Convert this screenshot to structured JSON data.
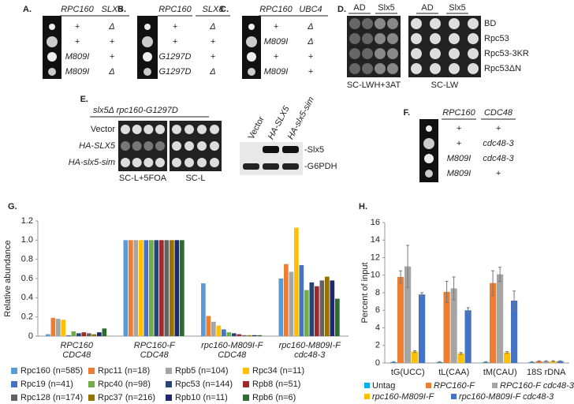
{
  "panels": {
    "A": {
      "label": "A.",
      "headers": [
        "RPC160",
        "SLX5"
      ],
      "rows": [
        [
          "+",
          "Δ"
        ],
        [
          "+",
          "+"
        ],
        [
          "M809I",
          "+"
        ],
        [
          "M809I",
          "Δ"
        ]
      ]
    },
    "B": {
      "label": "B.",
      "headers": [
        "RPC160",
        "SLX8"
      ],
      "rows": [
        [
          "+",
          "Δ"
        ],
        [
          "+",
          "+"
        ],
        [
          "G1297D",
          "+"
        ],
        [
          "G1297D",
          "Δ"
        ]
      ]
    },
    "C": {
      "label": "C.",
      "headers": [
        "RPC160",
        "UBC4"
      ],
      "rows": [
        [
          "+",
          "Δ"
        ],
        [
          "M809I",
          "Δ"
        ],
        [
          "+",
          "+"
        ],
        [
          "M809I",
          "+"
        ]
      ]
    },
    "D": {
      "label": "D.",
      "columns": [
        "AD",
        "Slx5",
        "AD",
        "Slx5"
      ],
      "rows": [
        "BD",
        "Rpc53",
        "Rpc53-3KR",
        "Rpc53ΔN"
      ],
      "plates": [
        "SC-LWH+3AT",
        "SC-LW"
      ]
    },
    "E": {
      "label": "E.",
      "header": "slx5Δ  rpc160-G1297D",
      "rows": [
        "Vector",
        "HA-SLX5",
        "HA-slx5-sim"
      ],
      "plates": [
        "SC-L+5FOA",
        "SC-L"
      ],
      "lanes": [
        "Vector",
        "HA-SLX5",
        "HA-slx5-sim"
      ],
      "bands": [
        "-Slx5",
        "-G6PDH"
      ]
    },
    "F": {
      "label": "F.",
      "headers": [
        "RPC160",
        "CDC48"
      ],
      "rows": [
        [
          "+",
          "+"
        ],
        [
          "+",
          "cdc48-3"
        ],
        [
          "M809I",
          "cdc48-3"
        ],
        [
          "M809I",
          "+"
        ]
      ]
    }
  },
  "chart_data": [
    {
      "type": "bar",
      "label": "G.",
      "y_label": "Relative abundance",
      "categories": [
        "RPC160\nCDC48",
        "RPC160-F\nCDC48",
        "rpc160-M809I-F\nCDC48",
        "rpc160-M809I-F\ncdc48-3"
      ],
      "ylim": [
        0,
        1.2
      ],
      "yticks": [
        0,
        0.2,
        0.4,
        0.6,
        0.8,
        {
          "value": 1,
          "label": "1.0"
        },
        1.2
      ],
      "series": [
        {
          "name": "Rpc160 (n=585)",
          "color": "#5b9bd5",
          "values": [
            0.02,
            1,
            0.55,
            0.6
          ]
        },
        {
          "name": "Rpc11 (n=18)",
          "color": "#ed7d31",
          "values": [
            0.19,
            1,
            0.21,
            0.75
          ]
        },
        {
          "name": "Rpb5 (n=104)",
          "color": "#a5a5a5",
          "values": [
            0.18,
            1,
            0.15,
            0.67
          ]
        },
        {
          "name": "Rpc34 (n=11)",
          "color": "#ffc000",
          "values": [
            0.17,
            1,
            0.11,
            1.13
          ]
        },
        {
          "name": "Rpc19 (n=41)",
          "color": "#4472c4",
          "values": [
            0.01,
            1,
            0.07,
            0.74
          ]
        },
        {
          "name": "Rpc40 (n=98)",
          "color": "#70ad47",
          "values": [
            0.05,
            1,
            0.04,
            0.48
          ]
        },
        {
          "name": "Rpc53 (n=144)",
          "color": "#264478",
          "values": [
            0.03,
            1,
            0.03,
            0.56
          ]
        },
        {
          "name": "Rpb8 (n=51)",
          "color": "#9e2a2b",
          "values": [
            0.04,
            1,
            0.02,
            0.52
          ]
        },
        {
          "name": "Rpc128 (n=174)",
          "color": "#636363",
          "values": [
            0.03,
            1,
            0.01,
            0.58
          ]
        },
        {
          "name": "Rpc37 (n=216)",
          "color": "#997300",
          "values": [
            0.02,
            1,
            0.01,
            0.62
          ]
        },
        {
          "name": "Rpb10 (n=11)",
          "color": "#1f2a6b",
          "values": [
            0.04,
            1,
            0.01,
            0.58
          ]
        },
        {
          "name": "Rpb6 (n=6)",
          "color": "#2e6b30",
          "values": [
            0.08,
            1,
            0.01,
            0.39
          ]
        }
      ]
    },
    {
      "type": "bar",
      "label": "H.",
      "y_label": "Percent of input",
      "categories": [
        "tG(UCC)",
        "tL(CAA)",
        "tM(CAU)",
        "18S rDNA"
      ],
      "ylim": [
        0,
        16
      ],
      "yticks": [
        0,
        2,
        4,
        6,
        8,
        10,
        12,
        14,
        16
      ],
      "series": [
        {
          "name": "Untag",
          "color": "#00b0f0",
          "values": [
            0.1,
            0.1,
            0.1,
            0.1
          ],
          "errors": [
            0.05,
            0.05,
            0.05,
            0.05
          ]
        },
        {
          "name": "RPC160-F",
          "color": "#ed7d31",
          "values": [
            9.8,
            8.1,
            9.1,
            0.2
          ],
          "errors": [
            0.7,
            1.2,
            1.4,
            0.05
          ]
        },
        {
          "name": "RPC160-F cdc48-3",
          "color": "#a5a5a5",
          "values": [
            11,
            8.5,
            10.1,
            0.2
          ],
          "errors": [
            2.4,
            1.3,
            0.8,
            0.05
          ]
        },
        {
          "name": "rpc160-M809I-F",
          "color": "#ffc000",
          "values": [
            1.3,
            1.1,
            1.2,
            0.2
          ],
          "errors": [
            0.1,
            0.1,
            0.1,
            0.05
          ]
        },
        {
          "name": "rpc160-M809I-F cdc48-3",
          "color": "#4472c4",
          "values": [
            7.8,
            6,
            7.1,
            0.2
          ],
          "errors": [
            0.2,
            0.3,
            1.1,
            0.05
          ]
        }
      ]
    }
  ]
}
